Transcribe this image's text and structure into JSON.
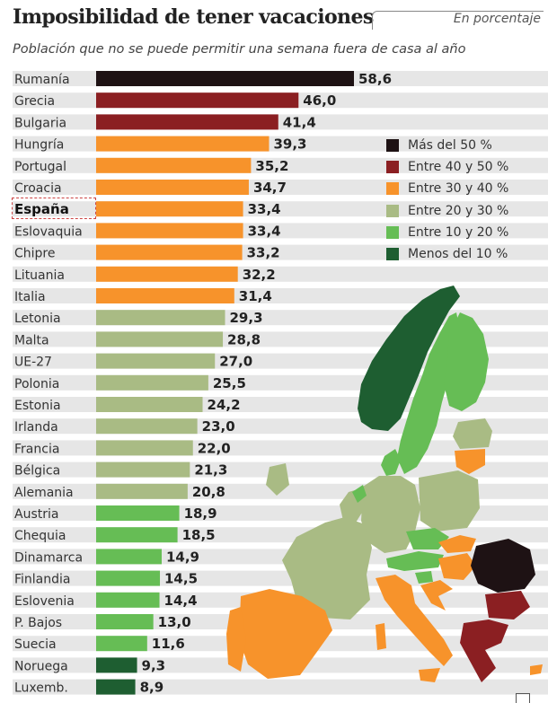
{
  "header": {
    "title": "Imposibilidad de tener vacaciones",
    "unit": "En porcentaje",
    "subtitle": "Población que no se puede permitir una semana fuera de casa al año"
  },
  "chart_data": {
    "type": "bar",
    "orientation": "horizontal",
    "title": "Imposibilidad de tener vacaciones",
    "subtitle": "Población que no se puede permitir una semana fuera de casa al año",
    "unit": "En porcentaje",
    "categories": [
      "Rumanía",
      "Grecia",
      "Bulgaria",
      "Hungría",
      "Portugal",
      "Croacia",
      "España",
      "Eslovaquia",
      "Chipre",
      "Lituania",
      "Italia",
      "Letonia",
      "Malta",
      "UE-27",
      "Polonia",
      "Estonia",
      "Irlanda",
      "Francia",
      "Bélgica",
      "Alemania",
      "Austria",
      "Chequia",
      "Dinamarca",
      "Finlandia",
      "Eslovenia",
      "P. Bajos",
      "Suecia",
      "Noruega",
      "Luxemb."
    ],
    "values": [
      58.6,
      46.0,
      41.4,
      39.3,
      35.2,
      34.7,
      33.4,
      33.4,
      33.2,
      32.2,
      31.4,
      29.3,
      28.8,
      27.0,
      25.5,
      24.2,
      23.0,
      22.0,
      21.3,
      20.8,
      18.9,
      18.5,
      14.9,
      14.5,
      14.4,
      13.0,
      11.6,
      9.3,
      8.9
    ],
    "value_labels": [
      "58,6",
      "46,0",
      "41,4",
      "39,3",
      "35,2",
      "34,7",
      "33,4",
      "33,4",
      "33,2",
      "32,2",
      "31,4",
      "29,3",
      "28,8",
      "27,0",
      "25,5",
      "24,2",
      "23,0",
      "22,0",
      "21,3",
      "20,8",
      "18,9",
      "18,5",
      "14,9",
      "14,5",
      "14,4",
      "13,0",
      "11,6",
      "9,3",
      "8,9"
    ],
    "highlight": "España",
    "xlim": [
      0,
      100
    ],
    "legend": [
      {
        "label": "Más del 50 %",
        "color": "#1e1214"
      },
      {
        "label": "Entre 40 y 50 %",
        "color": "#8b1f22"
      },
      {
        "label": "Entre 30 y 40 %",
        "color": "#f7932b"
      },
      {
        "label": "Entre 20 y 30 %",
        "color": "#a9bb84"
      },
      {
        "label": "Entre 10 y 20 %",
        "color": "#66bd55"
      },
      {
        "label": "Menos del 10 %",
        "color": "#1e5e31"
      }
    ],
    "legend_position": "right"
  },
  "colors": {
    "track": "#e6e6e6",
    "map_water": "#ffffff",
    "map_outside": "#dcdcdc"
  }
}
